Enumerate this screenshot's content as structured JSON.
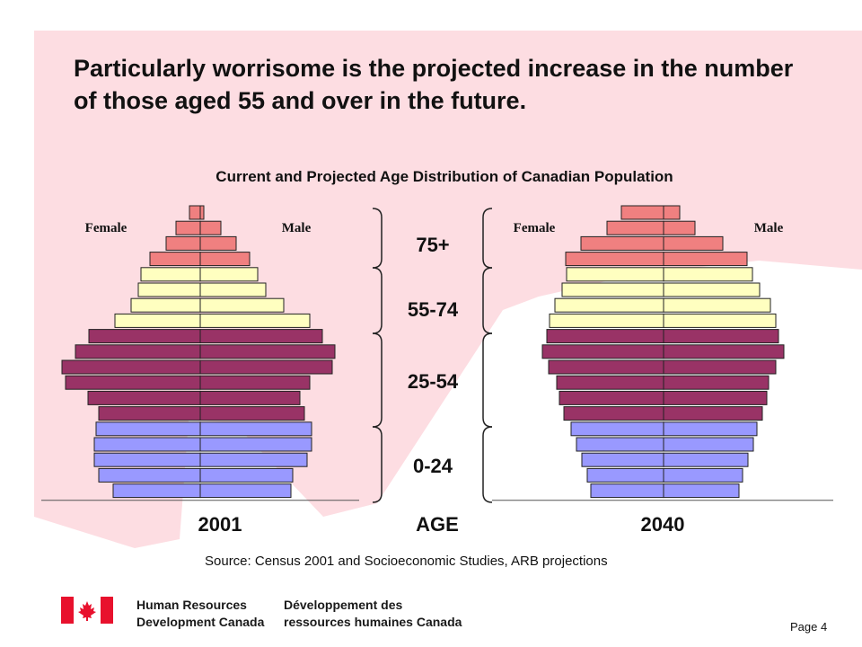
{
  "headline": "Particularly worrisome is the projected increase in the number of those aged 55 and over in the future.",
  "source": "Source: Census 2001 and Socioeconomic Studies, ARB projections",
  "page_label": "Page 4",
  "org": {
    "en_line1": "Human Resources",
    "en_line2": "Development Canada",
    "fr_line1": "Développement des",
    "fr_line2": "ressources humaines Canada"
  },
  "colors": {
    "age_75_plus": "#f08080",
    "age_55_74": "#ffffc0",
    "age_25_54": "#993366",
    "age_0_24": "#9999ff",
    "background_shape": "#fddde2",
    "flag_red": "#e8112d"
  },
  "chart_data": {
    "type": "bar",
    "title": "Current and Projected Age Distribution of Canadian Population",
    "subtype": "population-pyramid",
    "xlabel": "AGE",
    "age_groups": [
      {
        "label": "75+",
        "color_key": "age_75_plus",
        "bars": 4
      },
      {
        "label": "55-74",
        "color_key": "age_55_74",
        "bars": 4
      },
      {
        "label": "25-54",
        "color_key": "age_25_54",
        "bars": 6
      },
      {
        "label": "0-24",
        "color_key": "age_0_24",
        "bars": 5
      }
    ],
    "pyramids": [
      {
        "year": "2001",
        "female_label": "Female",
        "male_label": "Male",
        "female": [
          12,
          27,
          38,
          56,
          66,
          69,
          77,
          95,
          124,
          139,
          154,
          150,
          125,
          113,
          116,
          118,
          118,
          113,
          97
        ],
        "male": [
          4,
          23,
          40,
          55,
          64,
          73,
          93,
          122,
          136,
          150,
          147,
          122,
          111,
          116,
          124,
          124,
          119,
          103,
          101
        ]
      },
      {
        "year": "2040",
        "female_label": "Female",
        "male_label": "Male",
        "female": [
          47,
          63,
          92,
          109,
          108,
          113,
          121,
          127,
          130,
          135,
          128,
          119,
          116,
          111,
          103,
          97,
          91,
          85,
          81
        ],
        "male": [
          18,
          35,
          66,
          93,
          99,
          107,
          119,
          125,
          128,
          134,
          125,
          117,
          115,
          110,
          104,
          100,
          94,
          88,
          84
        ]
      }
    ]
  }
}
